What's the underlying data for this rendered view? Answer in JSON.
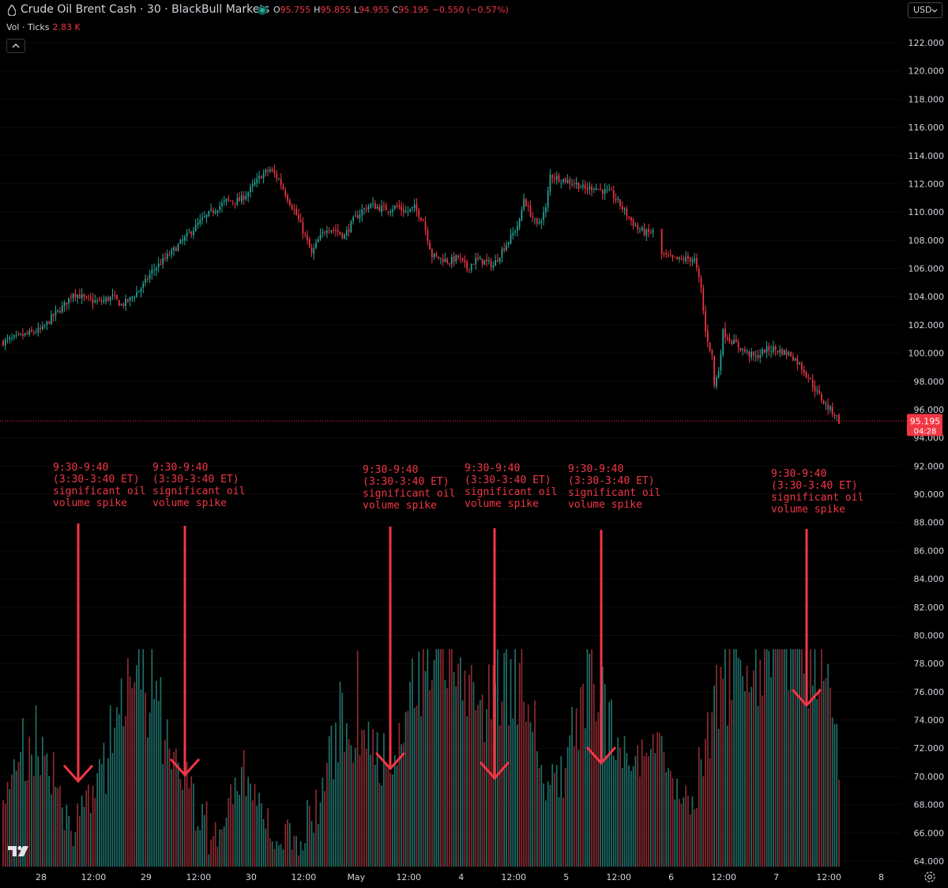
{
  "header": {
    "title": "Crude Oil Brent Cash · 30 · BlackBull Markets",
    "ohlc": [
      {
        "k": "O",
        "v": "95.755"
      },
      {
        "k": "H",
        "v": "95.855"
      },
      {
        "k": "L",
        "v": "94.955"
      },
      {
        "k": "C",
        "v": "95.195"
      },
      {
        "k": "",
        "v": "−0.550 (−0.57%)"
      }
    ],
    "volume_label": "Vol · Ticks",
    "volume_value": "2.83 K",
    "currency": "USD"
  },
  "colors": {
    "up": "#26a69a",
    "down": "#f23645",
    "annotation": "#f23645",
    "background": "#000000"
  },
  "annotations": [
    {
      "text": "9:30-9:40\n(3:30-3:40 ET)\nsignificant oil\nvolume spike",
      "x_label": "Apr 28 ~14:30"
    },
    {
      "text": "9:30-9:40\n(3:30-3:40 ET)\nsignificant oil\nvolume spike",
      "x_label": "Apr 29 ~14:30"
    },
    {
      "text": "9:30-9:40\n(3:30-3:40 ET)\nsignificant oil\nvolume spike",
      "x_label": "May 1 ~14:30"
    },
    {
      "text": "9:30-9:40\n(3:30-3:40 ET)\nsignificant oil\nvolume spike",
      "x_label": "May 4 ~14:30"
    },
    {
      "text": "9:30-9:40\n(3:30-3:40 ET)\nsignificant oil\nvolume spike",
      "x_label": "May 5 ~14:30"
    },
    {
      "text": "9:30-9:40\n(3:30-3:40 ET)\nsignificant oil\nvolume spike",
      "x_label": "May 7 ~14:30"
    }
  ],
  "chart_data": {
    "type": "candlestick",
    "title": "Crude Oil Brent Cash · 30 · BlackBull Markets",
    "interval": "30 minutes",
    "y_ticks": [
      "122.000",
      "120.000",
      "118.000",
      "116.000",
      "114.000",
      "112.000",
      "110.000",
      "108.000",
      "106.000",
      "104.000",
      "102.000",
      "100.000",
      "98.000",
      "96.000",
      "94.000",
      "92.000",
      "90.000",
      "88.000",
      "86.000",
      "84.000",
      "82.000",
      "80.000",
      "78.000",
      "76.000",
      "74.000",
      "72.000",
      "70.000",
      "68.000",
      "66.000",
      "64.000"
    ],
    "y_tick_values": [
      122,
      120,
      118,
      116,
      114,
      112,
      110,
      108,
      106,
      104,
      102,
      100,
      98,
      96,
      94,
      92,
      90,
      88,
      86,
      84,
      82,
      80,
      78,
      76,
      74,
      72,
      70,
      68,
      66,
      64
    ],
    "ylim": [
      63.5,
      123.8
    ],
    "x_ticks": [
      "28",
      "12:00",
      "29",
      "12:00",
      "30",
      "12:00",
      "May",
      "12:00",
      "4",
      "12:00",
      "5",
      "12:00",
      "6",
      "12:00",
      "7",
      "12:00",
      "8"
    ],
    "x_tick_index": [
      0,
      24,
      48,
      72,
      96,
      120,
      144,
      168,
      192,
      216,
      240,
      264,
      288,
      312,
      336,
      360,
      384
    ],
    "last_price_label": "95.195",
    "countdown_label": "04:28",
    "last_price": 95.195,
    "price_path": [
      {
        "i": 0,
        "p": 100.8
      },
      {
        "i": 6,
        "p": 101.1
      },
      {
        "i": 12,
        "p": 101.4
      },
      {
        "i": 18,
        "p": 101.7
      },
      {
        "i": 22,
        "p": 102.5
      },
      {
        "i": 28,
        "p": 103.4
      },
      {
        "i": 32,
        "p": 104.3
      },
      {
        "i": 38,
        "p": 103.8
      },
      {
        "i": 44,
        "p": 103.6
      },
      {
        "i": 50,
        "p": 104.0
      },
      {
        "i": 54,
        "p": 103.4
      },
      {
        "i": 58,
        "p": 103.8
      },
      {
        "i": 64,
        "p": 104.8
      },
      {
        "i": 68,
        "p": 105.8
      },
      {
        "i": 72,
        "p": 106.4
      },
      {
        "i": 78,
        "p": 107.3
      },
      {
        "i": 84,
        "p": 108.3
      },
      {
        "i": 90,
        "p": 109.3
      },
      {
        "i": 96,
        "p": 110.1
      },
      {
        "i": 102,
        "p": 110.8
      },
      {
        "i": 108,
        "p": 110.8
      },
      {
        "i": 112,
        "p": 111.4
      },
      {
        "i": 118,
        "p": 112.6
      },
      {
        "i": 122,
        "p": 113.0
      },
      {
        "i": 126,
        "p": 112.3
      },
      {
        "i": 130,
        "p": 111.0
      },
      {
        "i": 134,
        "p": 109.8
      },
      {
        "i": 138,
        "p": 108.3
      },
      {
        "i": 141,
        "p": 107.0
      },
      {
        "i": 144,
        "p": 108.0
      },
      {
        "i": 148,
        "p": 108.9
      },
      {
        "i": 152,
        "p": 108.7
      },
      {
        "i": 156,
        "p": 108.3
      },
      {
        "i": 160,
        "p": 109.4
      },
      {
        "i": 164,
        "p": 110.1
      },
      {
        "i": 168,
        "p": 110.5
      },
      {
        "i": 172,
        "p": 110.3
      },
      {
        "i": 176,
        "p": 110.2
      },
      {
        "i": 180,
        "p": 110.4
      },
      {
        "i": 184,
        "p": 110.0
      },
      {
        "i": 188,
        "p": 110.3
      },
      {
        "i": 192,
        "p": 109.4
      },
      {
        "i": 196,
        "p": 106.9
      },
      {
        "i": 200,
        "p": 106.7
      },
      {
        "i": 204,
        "p": 106.5
      },
      {
        "i": 208,
        "p": 106.8
      },
      {
        "i": 212,
        "p": 106.0
      },
      {
        "i": 216,
        "p": 106.6
      },
      {
        "i": 220,
        "p": 106.5
      },
      {
        "i": 224,
        "p": 106.2
      },
      {
        "i": 228,
        "p": 107.3
      },
      {
        "i": 232,
        "p": 108.2
      },
      {
        "i": 236,
        "p": 109.3
      },
      {
        "i": 238,
        "p": 111.0
      },
      {
        "i": 240,
        "p": 110.2
      },
      {
        "i": 244,
        "p": 109.0
      },
      {
        "i": 248,
        "p": 110.2
      },
      {
        "i": 250,
        "p": 112.6
      },
      {
        "i": 254,
        "p": 112.4
      },
      {
        "i": 258,
        "p": 112.2
      },
      {
        "i": 262,
        "p": 112.0
      },
      {
        "i": 266,
        "p": 111.6
      },
      {
        "i": 270,
        "p": 111.8
      },
      {
        "i": 274,
        "p": 111.5
      },
      {
        "i": 278,
        "p": 111.3
      },
      {
        "i": 282,
        "p": 110.5
      },
      {
        "i": 286,
        "p": 109.6
      },
      {
        "i": 290,
        "p": 108.8
      },
      {
        "i": 294,
        "p": 108.5
      },
      {
        "i": 297,
        "p": 108.6
      },
      {
        "i": 301,
        "p": 107.0
      },
      {
        "i": 305,
        "p": 106.7
      },
      {
        "i": 309,
        "p": 106.6
      },
      {
        "i": 313,
        "p": 106.7
      },
      {
        "i": 316,
        "p": 106.6
      },
      {
        "i": 319,
        "p": 104.5
      },
      {
        "i": 321,
        "p": 101.5
      },
      {
        "i": 324,
        "p": 99.8
      },
      {
        "i": 325,
        "p": 97.7
      },
      {
        "i": 327,
        "p": 98.8
      },
      {
        "i": 329,
        "p": 101.5
      },
      {
        "i": 332,
        "p": 101.0
      },
      {
        "i": 336,
        "p": 100.5
      },
      {
        "i": 340,
        "p": 100.0
      },
      {
        "i": 344,
        "p": 99.7
      },
      {
        "i": 348,
        "p": 100.2
      },
      {
        "i": 352,
        "p": 100.3
      },
      {
        "i": 356,
        "p": 100.1
      },
      {
        "i": 360,
        "p": 99.9
      },
      {
        "i": 364,
        "p": 99.2
      },
      {
        "i": 368,
        "p": 98.3
      },
      {
        "i": 372,
        "p": 97.2
      },
      {
        "i": 376,
        "p": 96.3
      },
      {
        "i": 380,
        "p": 95.7
      },
      {
        "i": 382,
        "p": 95.195
      }
    ],
    "gaps_after_index": [
      297,
      140
    ],
    "volume_series": {
      "name": "Vol · Ticks",
      "last_value": "2.83 K",
      "spike_indices": [
        14,
        63,
        110,
        160,
        193,
        209,
        232,
        270,
        298,
        331,
        352,
        363,
        376
      ],
      "spike_scale": [
        0.55,
        0.85,
        0.3,
        0.75,
        0.95,
        0.65,
        1.0,
        0.82,
        0.55,
        1.0,
        0.7,
        0.75,
        0.6
      ],
      "spike_width": [
        8,
        14,
        6,
        10,
        10,
        8,
        10,
        10,
        8,
        9,
        8,
        9,
        8
      ]
    }
  }
}
